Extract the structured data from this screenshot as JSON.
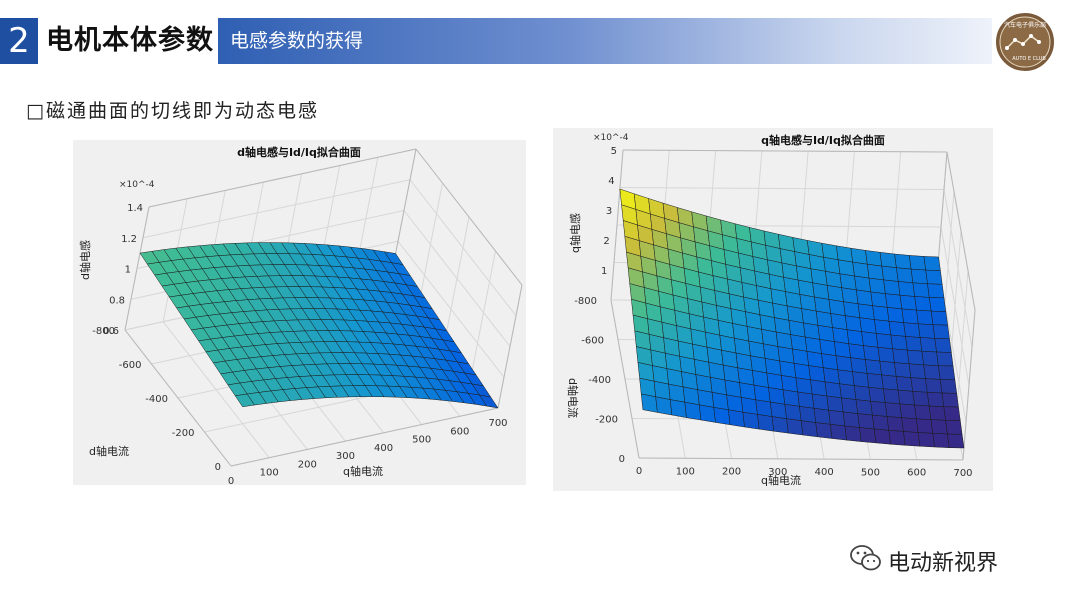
{
  "header": {
    "section_number": "2",
    "main_title": "电机本体参数",
    "sub_title": "电感参数的获得"
  },
  "bullet": {
    "text": "□磁通曲面的切线即为动态电感"
  },
  "logo": {
    "text_top": "汽车电子俱乐部",
    "text_bottom": "AUTO E CLUB"
  },
  "watermark": {
    "text": "电动新视界"
  },
  "colors": {
    "header_blue": "#1f4fa0",
    "surface_low": "#2a3b8f",
    "surface_high": "#f5e23c"
  },
  "chart_data": [
    {
      "type": "surface",
      "title": "d轴电感与Id/Iq拟合曲面",
      "xlabel": "q轴电流",
      "ylabel": "d轴电流",
      "zlabel": "d轴电感",
      "exponent": "×10^-4",
      "xticks": [
        "0",
        "100",
        "200",
        "300",
        "400",
        "500",
        "600",
        "700"
      ],
      "yticks": [
        "0",
        "-200",
        "-400",
        "-600",
        "-800"
      ],
      "zticks": [
        "0.6",
        "0.8",
        "1",
        "1.2",
        "1.4"
      ],
      "xlim": [
        0,
        700
      ],
      "ylim": [
        -800,
        0
      ],
      "zlim": [
        0.6,
        1.4
      ]
    },
    {
      "type": "surface",
      "title": "q轴电感与Id/Iq拟合曲面",
      "xlabel": "q轴电流",
      "ylabel": "d轴电流",
      "zlabel": "q轴电感",
      "exponent": "×10^-4",
      "xticks": [
        "0",
        "100",
        "200",
        "300",
        "400",
        "500",
        "600",
        "700"
      ],
      "yticks": [
        "0",
        "-200",
        "-400",
        "-600",
        "-800"
      ],
      "zticks": [
        "1",
        "2",
        "3",
        "4",
        "5"
      ],
      "xlim": [
        0,
        700
      ],
      "ylim": [
        -800,
        0
      ],
      "zlim": [
        0,
        5
      ]
    }
  ]
}
